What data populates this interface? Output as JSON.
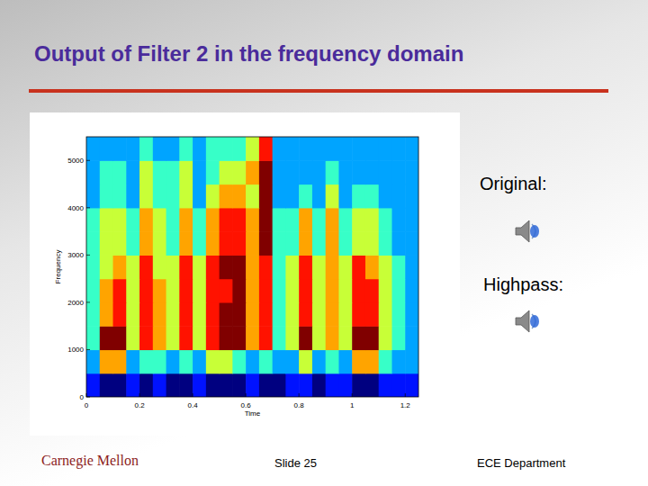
{
  "slide": {
    "title": "Output of Filter 2 in the frequency domain",
    "audio_labels": [
      "Original:",
      "Highpass:"
    ],
    "footer_left": "Carnegie Mellon",
    "footer_center": "Slide 25",
    "footer_right": "ECE Department"
  },
  "chart_data": {
    "type": "heatmap",
    "x_label": "Time",
    "y_label": "Frequency",
    "x_bins": [
      0,
      0.05,
      0.1,
      0.15,
      0.2,
      0.25,
      0.3,
      0.35,
      0.4,
      0.45,
      0.5,
      0.55,
      0.6,
      0.65,
      0.7,
      0.75,
      0.8,
      0.85,
      0.9,
      0.95,
      1,
      1.05,
      1.1,
      1.15,
      1.2,
      1.25
    ],
    "y_bins": [
      0,
      500,
      1000,
      1500,
      2000,
      2500,
      3000,
      3500,
      4000,
      4500,
      5000,
      5500
    ],
    "values": [
      [
        3,
        2,
        2,
        3,
        2,
        3,
        2,
        2,
        3,
        2,
        2,
        2,
        3,
        2,
        2,
        3,
        3,
        2,
        3,
        3,
        2,
        2,
        3,
        3,
        3
      ],
      [
        4,
        7,
        7,
        4,
        5,
        5,
        4,
        5,
        4,
        6,
        6,
        5,
        4,
        5,
        4,
        4,
        6,
        4,
        5,
        4,
        7,
        7,
        5,
        4,
        4
      ],
      [
        5,
        9,
        9,
        6,
        8,
        7,
        6,
        8,
        6,
        8,
        9,
        9,
        7,
        8,
        5,
        6,
        9,
        6,
        7,
        6,
        9,
        9,
        6,
        5,
        4
      ],
      [
        5,
        7,
        8,
        6,
        8,
        7,
        6,
        8,
        6,
        8,
        9,
        9,
        7,
        8,
        5,
        6,
        8,
        6,
        7,
        6,
        8,
        8,
        6,
        5,
        4
      ],
      [
        5,
        7,
        8,
        6,
        8,
        7,
        6,
        8,
        6,
        8,
        8,
        9,
        7,
        8,
        5,
        6,
        8,
        6,
        7,
        6,
        8,
        8,
        6,
        5,
        4
      ],
      [
        5,
        6,
        7,
        6,
        8,
        6,
        6,
        8,
        6,
        8,
        9,
        9,
        7,
        8,
        5,
        6,
        8,
        6,
        7,
        6,
        8,
        7,
        6,
        5,
        4
      ],
      [
        5,
        6,
        6,
        5,
        7,
        6,
        5,
        7,
        5,
        7,
        8,
        8,
        7,
        9,
        5,
        5,
        7,
        5,
        7,
        5,
        6,
        6,
        5,
        4,
        4
      ],
      [
        5,
        6,
        6,
        5,
        7,
        6,
        5,
        7,
        5,
        7,
        8,
        8,
        7,
        9,
        5,
        5,
        7,
        5,
        7,
        5,
        6,
        6,
        5,
        4,
        4
      ],
      [
        4,
        5,
        5,
        4,
        6,
        5,
        5,
        6,
        4,
        6,
        7,
        7,
        6,
        9,
        4,
        4,
        5,
        4,
        6,
        4,
        5,
        5,
        4,
        4,
        4
      ],
      [
        4,
        5,
        5,
        4,
        6,
        5,
        5,
        6,
        4,
        5,
        6,
        6,
        7,
        9,
        4,
        4,
        4,
        4,
        5,
        4,
        4,
        4,
        4,
        4,
        4
      ],
      [
        4,
        4,
        4,
        4,
        5,
        4,
        4,
        5,
        4,
        5,
        5,
        5,
        6,
        8,
        4,
        4,
        4,
        4,
        4,
        4,
        4,
        4,
        4,
        4,
        4
      ]
    ],
    "xlim": [
      0,
      1.25
    ],
    "ylim": [
      0,
      5500
    ],
    "xticks": [
      0,
      0.2,
      0.4,
      0.6,
      0.8,
      1,
      1.2
    ],
    "yticks": [
      0,
      1000,
      2000,
      3000,
      4000,
      5000
    ]
  }
}
